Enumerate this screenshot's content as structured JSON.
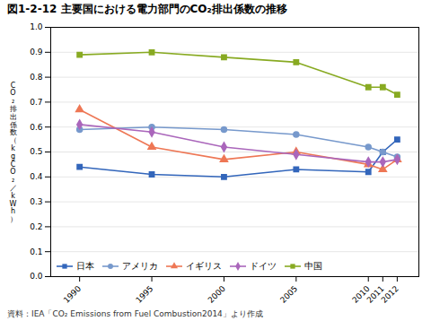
{
  "chart_data": {
    "type": "line",
    "title": "図1-2-12 主要国における電力部門のCO₂排出係数の推移",
    "y_label": "CO₂排出係数（kgCO₂／kWh）",
    "annotations": [
      "資料：IEA「CO₂ Emissions from Fuel Combustion2014」より作成"
    ],
    "x": [
      1990,
      1995,
      2000,
      2005,
      2010,
      2011,
      2012
    ],
    "xlim": [
      1988,
      2013.5
    ],
    "xticks": [
      1990,
      1995,
      2000,
      2005,
      2010,
      2011,
      2012
    ],
    "ylim": [
      0.0,
      1.0
    ],
    "yticks": [
      {
        "value": 0,
        "label": "0.0"
      },
      0.1,
      0.2,
      0.3,
      0.4,
      0.5,
      0.6,
      0.7,
      0.8,
      0.9,
      {
        "value": 1,
        "label": "1.0"
      }
    ],
    "grid": true,
    "legend": "lower left",
    "series": [
      {
        "name": "日本",
        "color": "#3366bb",
        "marker": "square",
        "values": [
          0.44,
          0.41,
          0.4,
          0.43,
          0.42,
          0.5,
          0.55
        ]
      },
      {
        "name": "アメリカ",
        "color": "#7799cc",
        "marker": "circle",
        "values": [
          0.59,
          0.6,
          0.59,
          0.57,
          0.52,
          0.5,
          0.48
        ]
      },
      {
        "name": "イギリス",
        "color": "#ee7755",
        "marker": "triangle",
        "values": [
          0.67,
          0.52,
          0.47,
          0.5,
          0.45,
          0.43,
          0.47
        ]
      },
      {
        "name": "ドイツ",
        "color": "#aa66bb",
        "marker": "diamond",
        "values": [
          0.61,
          0.58,
          0.52,
          0.49,
          0.46,
          0.46,
          0.47
        ]
      },
      {
        "name": "中国",
        "color": "#88aa22",
        "marker": "square",
        "values": [
          0.89,
          0.9,
          0.88,
          0.86,
          0.76,
          0.76,
          0.73
        ]
      }
    ]
  }
}
